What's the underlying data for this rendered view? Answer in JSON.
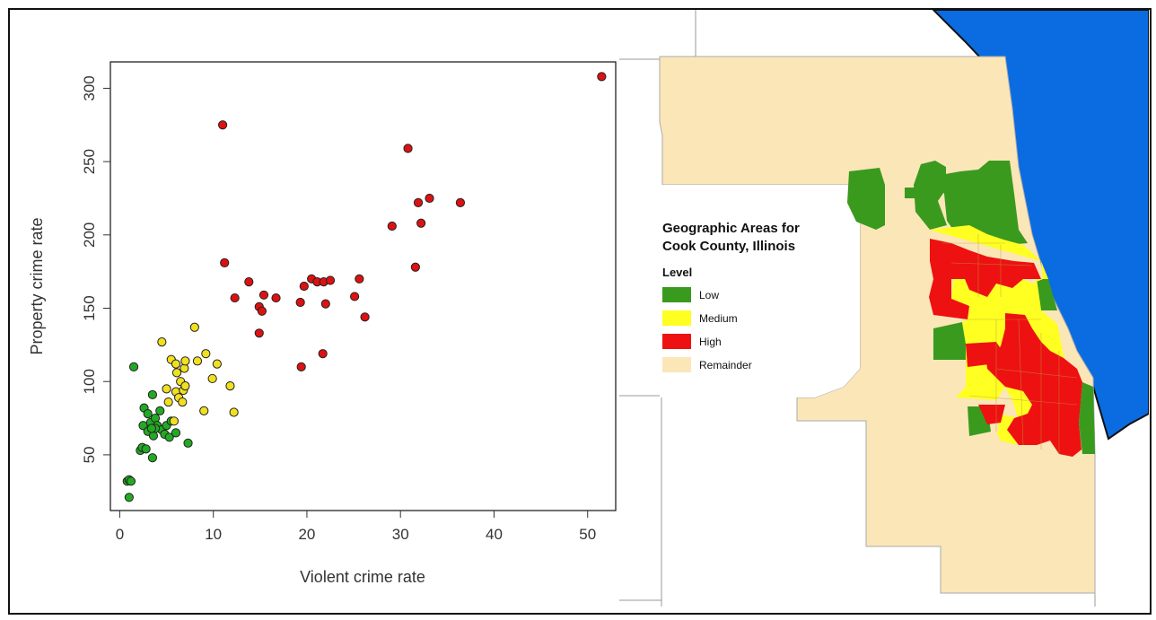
{
  "chart_data": [
    {
      "type": "scatter",
      "xlabel": "Violent crime rate",
      "ylabel": "Property crime rate",
      "xlim": [
        -1,
        53
      ],
      "ylim": [
        12,
        318
      ],
      "xticks": [
        "0",
        "10",
        "20",
        "30",
        "40",
        "50"
      ],
      "yticks": [
        "50",
        "100",
        "150",
        "200",
        "250",
        "300"
      ],
      "grid": false,
      "series": [
        {
          "color": "#22aa22",
          "points": [
            [
              0.8,
              32
            ],
            [
              1.0,
              33
            ],
            [
              1.2,
              32
            ],
            [
              1.0,
              21
            ],
            [
              1.5,
              110
            ],
            [
              2.2,
              53
            ],
            [
              2.4,
              55
            ],
            [
              2.5,
              70
            ],
            [
              2.6,
              82
            ],
            [
              3.0,
              66
            ],
            [
              3.0,
              78
            ],
            [
              3.3,
              72
            ],
            [
              3.5,
              48
            ],
            [
              3.5,
              91
            ],
            [
              3.6,
              63
            ],
            [
              3.8,
              75
            ],
            [
              4.0,
              70
            ],
            [
              4.3,
              80
            ],
            [
              4.5,
              67
            ],
            [
              4.8,
              64
            ],
            [
              5.0,
              70
            ],
            [
              5.3,
              62
            ],
            [
              5.5,
              73
            ],
            [
              6.0,
              65
            ],
            [
              7.3,
              58
            ],
            [
              2.8,
              54
            ],
            [
              3.8,
              68
            ],
            [
              3.4,
              68
            ]
          ]
        },
        {
          "color": "#f0e020",
          "points": [
            [
              4.5,
              127
            ],
            [
              5.0,
              95
            ],
            [
              5.2,
              86
            ],
            [
              5.5,
              115
            ],
            [
              5.8,
              73
            ],
            [
              6.0,
              112
            ],
            [
              6.0,
              93
            ],
            [
              6.1,
              106
            ],
            [
              6.3,
              89
            ],
            [
              6.5,
              100
            ],
            [
              6.7,
              86
            ],
            [
              6.8,
              94
            ],
            [
              6.9,
              109
            ],
            [
              7.0,
              97
            ],
            [
              7.0,
              114
            ],
            [
              8.0,
              137
            ],
            [
              8.3,
              114
            ],
            [
              9.0,
              80
            ],
            [
              9.2,
              119
            ],
            [
              9.9,
              102
            ],
            [
              10.4,
              112
            ],
            [
              11.8,
              97
            ],
            [
              12.2,
              79
            ]
          ]
        },
        {
          "color": "#dd1111",
          "points": [
            [
              11.0,
              275
            ],
            [
              11.2,
              181
            ],
            [
              12.3,
              157
            ],
            [
              13.8,
              168
            ],
            [
              14.9,
              133
            ],
            [
              14.9,
              151
            ],
            [
              15.2,
              148
            ],
            [
              15.4,
              159
            ],
            [
              16.7,
              157
            ],
            [
              19.3,
              154
            ],
            [
              19.4,
              110
            ],
            [
              19.7,
              165
            ],
            [
              20.5,
              170
            ],
            [
              21.1,
              168
            ],
            [
              21.7,
              119
            ],
            [
              21.8,
              168
            ],
            [
              22.0,
              153
            ],
            [
              22.5,
              169
            ],
            [
              25.1,
              158
            ],
            [
              25.6,
              170
            ],
            [
              26.2,
              144
            ],
            [
              29.1,
              206
            ],
            [
              30.8,
              259
            ],
            [
              31.6,
              178
            ],
            [
              31.9,
              222
            ],
            [
              32.2,
              208
            ],
            [
              33.1,
              225
            ],
            [
              36.4,
              222
            ],
            [
              51.5,
              308
            ]
          ]
        }
      ]
    },
    {
      "type": "map",
      "legend_title": "Geographic Areas for\nCook County, Illinois",
      "legend_title_line1": "Geographic Areas for",
      "legend_title_line2": "Cook County, Illinois",
      "legend_subtitle": "Level",
      "legend": [
        {
          "label": "Low",
          "color": "#3a9a1e"
        },
        {
          "label": "Medium",
          "color": "#ffff22"
        },
        {
          "label": "High",
          "color": "#ee1111"
        },
        {
          "label": "Remainder",
          "color": "#fbe6b8"
        }
      ],
      "lake_color": "#0a6ce0"
    }
  ]
}
